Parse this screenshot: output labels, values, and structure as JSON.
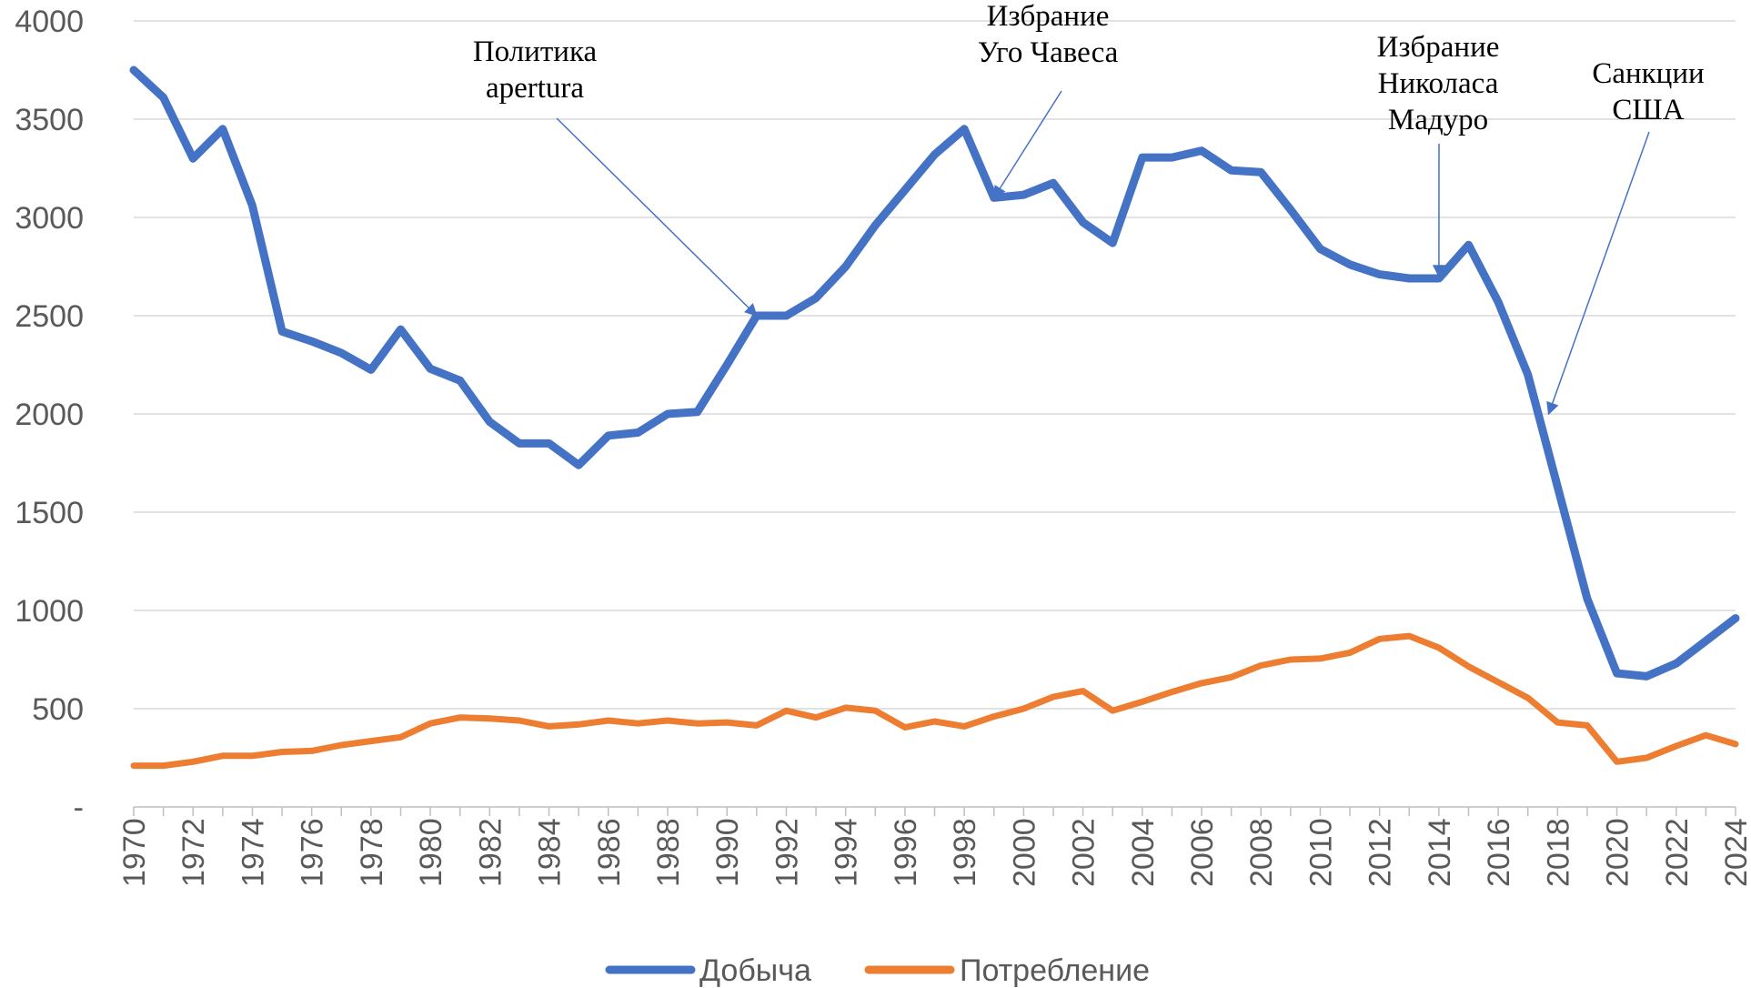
{
  "chart_data": {
    "type": "line",
    "title": "",
    "xlabel": "",
    "ylabel": "",
    "x": [
      1970,
      1971,
      1972,
      1973,
      1974,
      1975,
      1976,
      1977,
      1978,
      1979,
      1980,
      1981,
      1982,
      1983,
      1984,
      1985,
      1986,
      1987,
      1988,
      1989,
      1990,
      1991,
      1992,
      1993,
      1994,
      1995,
      1996,
      1997,
      1998,
      1999,
      2000,
      2001,
      2002,
      2003,
      2004,
      2005,
      2006,
      2007,
      2008,
      2009,
      2010,
      2011,
      2012,
      2013,
      2014,
      2015,
      2016,
      2017,
      2018,
      2019,
      2020,
      2021,
      2022,
      2023,
      2024
    ],
    "x_tick_labels": [
      "1970",
      "1972",
      "1974",
      "1976",
      "1978",
      "1980",
      "1982",
      "1984",
      "1986",
      "1988",
      "1990",
      "1992",
      "1994",
      "1996",
      "1998",
      "2000",
      "2002",
      "2004",
      "2006",
      "2008",
      "2010",
      "2012",
      "2014",
      "2016",
      "2018",
      "2020",
      "2022",
      "2024"
    ],
    "y_tick_labels": [
      "-",
      "500",
      "1000",
      "1500",
      "2000",
      "2500",
      "3000",
      "3500",
      "4000"
    ],
    "ylim": [
      0,
      4000
    ],
    "grid": true,
    "legend_position": "bottom",
    "series": [
      {
        "name": "Добыча",
        "color": "#4472C4",
        "values": [
          3750,
          3610,
          3300,
          3450,
          3060,
          2420,
          2370,
          2310,
          2225,
          2430,
          2230,
          2170,
          1960,
          1850,
          1850,
          1740,
          1890,
          1905,
          2000,
          2010,
          2250,
          2500,
          2500,
          2590,
          2750,
          2960,
          3140,
          3320,
          3450,
          3100,
          3115,
          3175,
          2975,
          2870,
          3305,
          3305,
          3340,
          3240,
          3230,
          3040,
          2840,
          2760,
          2710,
          2690,
          2690,
          2860,
          2570,
          2200,
          1630,
          1060,
          680,
          665,
          730,
          845,
          960
        ]
      },
      {
        "name": "Потребление",
        "color": "#ED7D31",
        "values": [
          210,
          210,
          230,
          260,
          260,
          280,
          285,
          315,
          335,
          355,
          425,
          455,
          450,
          440,
          410,
          420,
          440,
          425,
          440,
          425,
          430,
          415,
          490,
          455,
          505,
          490,
          405,
          435,
          410,
          460,
          500,
          560,
          590,
          490,
          535,
          585,
          630,
          660,
          720,
          750,
          755,
          785,
          855,
          870,
          810,
          715,
          635,
          555,
          430,
          415,
          230,
          250,
          310,
          365,
          320
        ]
      }
    ],
    "annotations": [
      {
        "lines": [
          "Политика",
          "apertura"
        ],
        "target_x": 1991,
        "target_y": 2500
      },
      {
        "lines": [
          "Избрание",
          "Уго Чавеса"
        ],
        "target_x": 1999,
        "target_y": 3100
      },
      {
        "lines": [
          "Избрание",
          "Николаса",
          "Мадуро"
        ],
        "target_x": 2014,
        "target_y": 2700
      },
      {
        "lines": [
          "Санкции",
          "США"
        ],
        "target_x": 2017.7,
        "target_y": 2000
      }
    ]
  }
}
